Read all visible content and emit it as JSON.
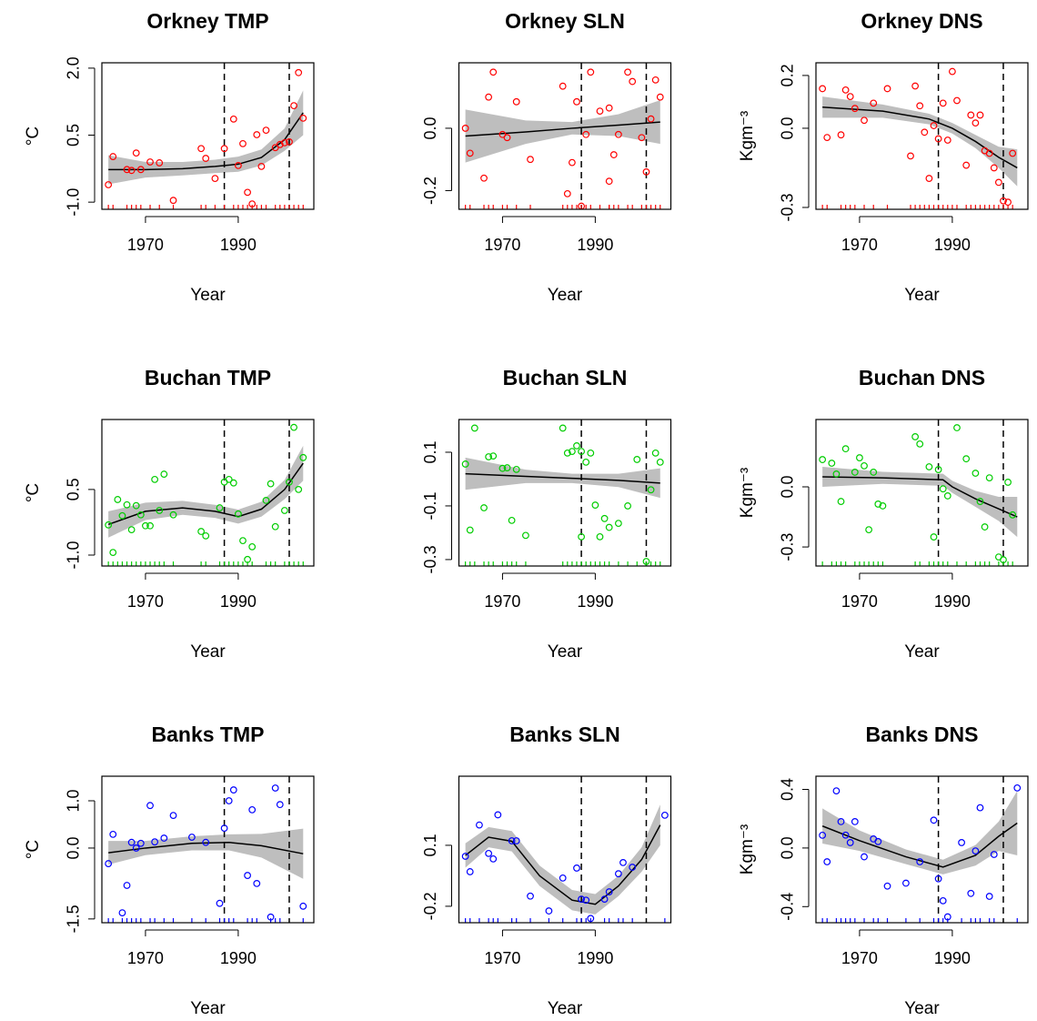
{
  "chart_data": [
    {
      "type": "scatter",
      "title": "Orkney TMP",
      "xlabel": "Year",
      "ylabel": "°C",
      "color": "#ff0000",
      "band_color": "#bebebe",
      "xlim": [
        1960.6,
        2006.3
      ],
      "xticks": [
        1970,
        1990
      ],
      "ylim": [
        -1.16,
        2.12
      ],
      "yticks": [
        {
          "value": -1,
          "label": "-1.0"
        },
        0.5,
        {
          "value": 2,
          "label": "2.0"
        }
      ],
      "vlines": [
        1987,
        2001
      ],
      "x": [
        1962,
        1963,
        1966,
        1967,
        1968,
        1969,
        1971,
        1973,
        1976,
        1982,
        1983,
        1985,
        1987,
        1989,
        1990,
        1991,
        1992,
        1993,
        1994,
        1995,
        1996,
        1998,
        1999,
        2000,
        2001,
        2002,
        2003,
        2004
      ],
      "values": [
        -0.61,
        0.02,
        -0.27,
        -0.29,
        0.1,
        -0.27,
        -0.1,
        -0.12,
        -0.96,
        0.2,
        -0.02,
        -0.47,
        0.2,
        0.86,
        -0.18,
        0.31,
        -0.78,
        -1.04,
        0.51,
        -0.2,
        0.61,
        0.22,
        0.29,
        0.33,
        0.35,
        1.16,
        1.9,
        0.88
      ],
      "fit": {
        "x": [
          1962,
          1970,
          1978,
          1985,
          1990,
          1995,
          2000,
          2004
        ],
        "values": [
          -0.27,
          -0.27,
          -0.25,
          -0.2,
          -0.15,
          0.0,
          0.4,
          1.0
        ],
        "lower": [
          -0.6,
          -0.45,
          -0.4,
          -0.35,
          -0.32,
          -0.18,
          0.15,
          0.5
        ],
        "upper": [
          0.05,
          -0.1,
          -0.1,
          -0.05,
          0.02,
          0.18,
          0.65,
          1.5
        ]
      }
    },
    {
      "type": "scatter",
      "title": "Orkney SLN",
      "xlabel": "Year",
      "color": "#ff0000",
      "band_color": "#bebebe",
      "xlim": [
        1960.6,
        2006.3
      ],
      "xticks": [
        1970,
        1990
      ],
      "ylim": [
        -0.26,
        0.21
      ],
      "yticks": [
        -0.2,
        {
          "value": 0,
          "label": "0.0"
        }
      ],
      "vlines": [
        1987,
        2001
      ],
      "x": [
        1962,
        1963,
        1966,
        1967,
        1968,
        1970,
        1971,
        1973,
        1976,
        1983,
        1984,
        1985,
        1986,
        1987,
        1988,
        1989,
        1991,
        1993,
        1993,
        1994,
        1995,
        1997,
        1998,
        2000,
        2001,
        2002,
        2003,
        2004
      ],
      "values": [
        0.0,
        -0.08,
        -0.16,
        0.1,
        0.18,
        -0.02,
        -0.03,
        0.085,
        -0.1,
        0.135,
        -0.21,
        -0.11,
        0.085,
        -0.25,
        -0.02,
        0.18,
        0.055,
        0.065,
        -0.17,
        -0.085,
        -0.02,
        0.18,
        0.15,
        -0.03,
        -0.14,
        0.03,
        0.155,
        0.1
      ],
      "fit": {
        "x": [
          1962,
          1975,
          1985,
          1995,
          2004
        ],
        "values": [
          -0.025,
          -0.012,
          0.0,
          0.01,
          0.02
        ],
        "lower": [
          -0.11,
          -0.05,
          -0.02,
          -0.025,
          -0.05
        ],
        "upper": [
          0.06,
          0.025,
          0.02,
          0.045,
          0.09
        ]
      }
    },
    {
      "type": "scatter",
      "title": "Orkney DNS",
      "xlabel": "Year",
      "ylabel": "Kgm⁻³",
      "color": "#ff0000",
      "band_color": "#bebebe",
      "xlim": [
        1960.6,
        2006.3
      ],
      "xticks": [
        1970,
        1990
      ],
      "ylim": [
        -0.307,
        0.248
      ],
      "yticks": [
        -0.3,
        {
          "value": 0,
          "label": "0.0"
        },
        0.2
      ],
      "vlines": [
        1987,
        2001
      ],
      "x": [
        1962,
        1963,
        1966,
        1967,
        1968,
        1969,
        1971,
        1973,
        1976,
        1981,
        1982,
        1983,
        1984,
        1985,
        1986,
        1987,
        1988,
        1989,
        1990,
        1991,
        1993,
        1994,
        1995,
        1996,
        1997,
        1998,
        1999,
        2000,
        2001,
        2002,
        2003
      ],
      "values": [
        0.15,
        -0.035,
        -0.025,
        0.145,
        0.12,
        0.075,
        0.03,
        0.095,
        0.15,
        -0.105,
        0.16,
        0.085,
        -0.015,
        -0.19,
        0.01,
        -0.04,
        0.095,
        -0.045,
        0.215,
        0.105,
        -0.14,
        0.05,
        0.02,
        0.05,
        -0.085,
        -0.095,
        -0.15,
        -0.205,
        -0.275,
        -0.28,
        -0.095
      ],
      "fit": {
        "x": [
          1962,
          1975,
          1985,
          1990,
          1995,
          2000,
          2004
        ],
        "values": [
          0.08,
          0.065,
          0.035,
          0.0,
          -0.05,
          -0.11,
          -0.15
        ],
        "lower": [
          0.04,
          0.04,
          0.015,
          -0.02,
          -0.075,
          -0.15,
          -0.22
        ],
        "upper": [
          0.12,
          0.09,
          0.055,
          0.02,
          -0.025,
          -0.07,
          -0.08
        ]
      }
    },
    {
      "type": "scatter",
      "title": "Buchan TMP",
      "xlabel": "Year",
      "ylabel": "°C",
      "color": "#00cd00",
      "band_color": "#bebebe",
      "xlim": [
        1960.6,
        2006.3
      ],
      "xticks": [
        1970,
        1990
      ],
      "ylim": [
        -1.25,
        2.1
      ],
      "yticks": [
        {
          "value": -1,
          "label": "-1.0"
        },
        0.5
      ],
      "vlines": [
        1987,
        2001
      ],
      "x": [
        1962,
        1963,
        1964,
        1965,
        1966,
        1967,
        1968,
        1969,
        1970,
        1971,
        1972,
        1973,
        1974,
        1976,
        1982,
        1983,
        1986,
        1987,
        1988,
        1989,
        1990,
        1991,
        1992,
        1993,
        1996,
        1997,
        1998,
        2000,
        2001,
        2002,
        2003,
        2004
      ],
      "values": [
        -0.31,
        -0.94,
        0.27,
        -0.1,
        0.15,
        -0.42,
        0.13,
        -0.08,
        -0.33,
        -0.33,
        0.73,
        0.02,
        0.85,
        -0.08,
        -0.46,
        -0.56,
        0.08,
        0.67,
        0.73,
        0.65,
        -0.06,
        -0.67,
        -1.1,
        -0.81,
        0.25,
        0.63,
        -0.35,
        0.02,
        0.67,
        1.92,
        0.5,
        1.23
      ],
      "fit": {
        "x": [
          1962,
          1970,
          1978,
          1985,
          1990,
          1995,
          2000,
          2004
        ],
        "values": [
          -0.3,
          0.0,
          0.08,
          0.0,
          -0.12,
          0.05,
          0.5,
          1.1
        ],
        "lower": [
          -0.6,
          -0.2,
          -0.08,
          -0.15,
          -0.28,
          -0.12,
          0.28,
          0.7
        ],
        "upper": [
          0.0,
          0.2,
          0.24,
          0.15,
          0.04,
          0.22,
          0.72,
          1.5
        ]
      }
    },
    {
      "type": "scatter",
      "title": "Buchan SLN",
      "xlabel": "Year",
      "color": "#00cd00",
      "band_color": "#bebebe",
      "xlim": [
        1960.6,
        2006.3
      ],
      "xticks": [
        1970,
        1990
      ],
      "ylim": [
        -0.324,
        0.222
      ],
      "yticks": [
        -0.3,
        -0.1,
        0.1
      ],
      "vlines": [
        1987,
        2001
      ],
      "x": [
        1962,
        1963,
        1964,
        1966,
        1967,
        1968,
        1970,
        1971,
        1972,
        1973,
        1975,
        1983,
        1984,
        1985,
        1986,
        1987,
        1987,
        1988,
        1989,
        1990,
        1991,
        1992,
        1993,
        1995,
        1997,
        1999,
        2001,
        2002,
        2003,
        2004
      ],
      "values": [
        0.056,
        -0.19,
        0.19,
        -0.107,
        0.083,
        0.086,
        0.04,
        0.042,
        -0.154,
        0.036,
        -0.21,
        0.19,
        0.097,
        0.103,
        0.124,
        -0.215,
        0.103,
        0.063,
        0.097,
        -0.097,
        -0.215,
        -0.147,
        -0.18,
        -0.165,
        -0.1,
        0.073,
        -0.307,
        -0.04,
        0.097,
        0.063
      ],
      "fit": {
        "x": [
          1962,
          1975,
          1985,
          1995,
          2004
        ],
        "values": [
          0.02,
          0.01,
          0.003,
          -0.005,
          -0.015
        ],
        "lower": [
          -0.04,
          -0.015,
          -0.015,
          -0.03,
          -0.07
        ],
        "upper": [
          0.08,
          0.035,
          0.02,
          0.02,
          0.04
        ]
      }
    },
    {
      "type": "scatter",
      "title": "Buchan DNS",
      "xlabel": "Year",
      "ylabel": "Kgm⁻³",
      "color": "#00cd00",
      "band_color": "#bebebe",
      "xlim": [
        1960.6,
        2006.3
      ],
      "xticks": [
        1970,
        1990
      ],
      "ylim": [
        -0.395,
        0.336
      ],
      "yticks": [
        -0.3,
        {
          "value": 0,
          "label": "0.0"
        }
      ],
      "vlines": [
        1987,
        2001
      ],
      "x": [
        1962,
        1964,
        1965,
        1966,
        1967,
        1969,
        1970,
        1971,
        1972,
        1973,
        1974,
        1975,
        1982,
        1983,
        1985,
        1986,
        1987,
        1988,
        1989,
        1991,
        1993,
        1995,
        1996,
        1997,
        1998,
        2000,
        2001,
        2002,
        2003
      ],
      "values": [
        0.136,
        0.118,
        0.064,
        -0.073,
        0.19,
        0.073,
        0.145,
        0.105,
        -0.214,
        0.073,
        -0.086,
        -0.095,
        0.25,
        0.214,
        0.1,
        -0.25,
        0.086,
        -0.01,
        -0.045,
        0.295,
        0.14,
        0.068,
        -0.073,
        -0.2,
        0.045,
        -0.35,
        -0.364,
        0.023,
        -0.14
      ],
      "fit": {
        "x": [
          1962,
          1975,
          1988,
          1990,
          1995,
          2000,
          2004
        ],
        "values": [
          0.05,
          0.045,
          0.035,
          0.0,
          -0.06,
          -0.11,
          -0.15
        ],
        "lower": [
          0.0,
          0.015,
          0.005,
          -0.03,
          -0.1,
          -0.17,
          -0.25
        ],
        "upper": [
          0.1,
          0.075,
          0.065,
          0.03,
          -0.02,
          -0.05,
          -0.05
        ]
      }
    },
    {
      "type": "scatter",
      "title": "Banks TMP",
      "xlabel": "Year",
      "ylabel": "°C",
      "color": "#0000ff",
      "band_color": "#bebebe",
      "xlim": [
        1960.6,
        2006.3
      ],
      "xticks": [
        1970,
        1990
      ],
      "ylim": [
        -1.58,
        1.52
      ],
      "yticks": [
        -1.5,
        {
          "value": 0,
          "label": "0.0"
        },
        {
          "value": 1,
          "label": "1.0"
        }
      ],
      "vlines": [
        1987,
        2001
      ],
      "x": [
        1962,
        1963,
        1965,
        1966,
        1967,
        1968,
        1969,
        1971,
        1972,
        1974,
        1976,
        1980,
        1983,
        1986,
        1987,
        1988,
        1989,
        1992,
        1993,
        1994,
        1997,
        1998,
        1999,
        2004
      ],
      "values": [
        -0.33,
        0.29,
        -1.37,
        -0.79,
        0.12,
        0.0,
        0.1,
        0.9,
        0.13,
        0.21,
        0.69,
        0.23,
        0.12,
        -1.17,
        0.42,
        1.0,
        1.23,
        -0.58,
        0.81,
        -0.75,
        -1.46,
        1.27,
        0.92,
        -1.23
      ],
      "fit": {
        "x": [
          1962,
          1970,
          1980,
          1988,
          1995,
          2004
        ],
        "values": [
          -0.1,
          0.0,
          0.1,
          0.12,
          0.05,
          -0.12
        ],
        "lower": [
          -0.35,
          -0.15,
          -0.05,
          -0.05,
          -0.2,
          -0.65
        ],
        "upper": [
          0.15,
          0.15,
          0.25,
          0.29,
          0.3,
          0.41
        ]
      }
    },
    {
      "type": "scatter",
      "title": "Banks SLN",
      "xlabel": "Year",
      "color": "#0000ff",
      "band_color": "#bebebe",
      "xlim": [
        1960.6,
        2006.3
      ],
      "xticks": [
        1970,
        1990
      ],
      "ylim": [
        -0.281,
        0.44
      ],
      "yticks": [
        -0.2,
        0.1
      ],
      "vlines": [
        1987,
        2001
      ],
      "x": [
        1962,
        1963,
        1965,
        1967,
        1968,
        1969,
        1972,
        1973,
        1976,
        1980,
        1983,
        1986,
        1987,
        1988,
        1989,
        1992,
        1993,
        1995,
        1996,
        1998,
        2005
      ],
      "values": [
        0.046,
        -0.03,
        0.2,
        0.06,
        0.033,
        0.25,
        0.122,
        0.122,
        -0.15,
        -0.223,
        -0.061,
        -0.012,
        -0.165,
        -0.17,
        -0.26,
        -0.165,
        -0.129,
        -0.04,
        0.015,
        -0.008,
        0.248
      ],
      "fit": {
        "x": [
          1962,
          1967,
          1972,
          1978,
          1985,
          1990,
          1995,
          2000,
          2004
        ],
        "values": [
          0.05,
          0.14,
          0.12,
          -0.05,
          -0.17,
          -0.19,
          -0.1,
          0.03,
          0.2
        ],
        "lower": [
          -0.01,
          0.09,
          0.07,
          -0.1,
          -0.22,
          -0.24,
          -0.15,
          -0.03,
          0.1
        ],
        "upper": [
          0.11,
          0.19,
          0.17,
          0.0,
          -0.12,
          -0.14,
          -0.05,
          0.09,
          0.3
        ]
      }
    },
    {
      "type": "scatter",
      "title": "Banks DNS",
      "xlabel": "Year",
      "ylabel": "Kgm⁻³",
      "color": "#0000ff",
      "band_color": "#bebebe",
      "xlim": [
        1960.6,
        2006.3
      ],
      "xticks": [
        1970,
        1990
      ],
      "ylim": [
        -0.51,
        0.49
      ],
      "yticks": [
        -0.4,
        {
          "value": 0,
          "label": "0.0"
        },
        0.4
      ],
      "vlines": [
        1987,
        2001
      ],
      "x": [
        1962,
        1963,
        1965,
        1966,
        1967,
        1968,
        1969,
        1971,
        1973,
        1974,
        1976,
        1980,
        1983,
        1986,
        1987,
        1988,
        1989,
        1992,
        1994,
        1995,
        1996,
        1998,
        1999,
        2004
      ],
      "values": [
        0.087,
        -0.094,
        0.39,
        0.18,
        0.088,
        0.037,
        0.18,
        -0.06,
        0.062,
        0.044,
        -0.26,
        -0.24,
        -0.094,
        0.19,
        -0.21,
        -0.36,
        -0.47,
        0.037,
        -0.31,
        -0.02,
        0.275,
        -0.33,
        -0.044,
        0.41
      ],
      "fit": {
        "x": [
          1962,
          1970,
          1980,
          1988,
          1995,
          2000,
          2004
        ],
        "values": [
          0.15,
          0.05,
          -0.06,
          -0.13,
          -0.05,
          0.08,
          0.17
        ],
        "lower": [
          0.03,
          -0.02,
          -0.11,
          -0.18,
          -0.12,
          -0.02,
          -0.05
        ],
        "upper": [
          0.27,
          0.12,
          -0.01,
          -0.08,
          0.02,
          0.18,
          0.39
        ]
      }
    }
  ]
}
